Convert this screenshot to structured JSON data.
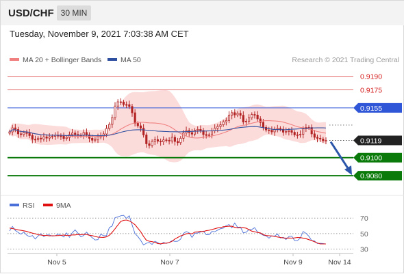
{
  "header": {
    "symbol": "USD/CHF",
    "timeframe": "30 MIN"
  },
  "datetime": "Tuesday, November 9, 2021 7:03:38 AM CET",
  "colors": {
    "ma20": "#f08080",
    "ma50": "#2e4fa0",
    "bollinger_fill": "#fbd5d5",
    "candle": "#b22222",
    "rsi": "#4a6fd8",
    "rsi_ma": "#e01010",
    "resistance": "#d62020",
    "pivot": "#2f56d6",
    "support": "#0a7a0a",
    "last": "#222222",
    "arrow": "#2b55a8"
  },
  "legend": [
    {
      "name": "MA 20 + Bollinger Bands",
      "color": "#f08080"
    },
    {
      "name": "MA 50",
      "color": "#2e4fa0"
    }
  ],
  "watermark": "Research © 2021 Trading Central",
  "rsi_legend": [
    {
      "name": "RSI",
      "color": "#4a6fd8"
    },
    {
      "name": "9MA",
      "color": "#e01010"
    }
  ],
  "chart_data": [
    {
      "type": "candlestick",
      "y_range": [
        9062,
        9198
      ],
      "levels": [
        {
          "label": "0.9190",
          "value": 9190,
          "kind": "resistance"
        },
        {
          "label": "0.9175",
          "value": 9175,
          "kind": "resistance"
        },
        {
          "label": "0.9155",
          "value": 9155,
          "kind": "pivot"
        },
        {
          "label": "0.9119",
          "value": 9119,
          "kind": "last"
        },
        {
          "label": "0.9100",
          "value": 9100,
          "kind": "support"
        },
        {
          "label": "0.9080",
          "value": 9080,
          "kind": "support"
        }
      ],
      "arrow": {
        "from": 9119,
        "to": 9080,
        "direction": "down"
      },
      "x_ticks": [
        "Nov 5",
        "Nov 7",
        "Nov 9",
        "Nov 14"
      ],
      "candles": [
        9128.5,
        9132.9,
        9131.1,
        9126.3,
        9125.6,
        9127.6,
        9127.1,
        9124.4,
        9120.3,
        9119.9,
        9121.5,
        9120.6,
        9123.0,
        9121.6,
        9123.0,
        9123.5,
        9124.6,
        9124.0,
        9123.9,
        9121.2,
        9122.4,
        9125.4,
        9127.2,
        9125.6,
        9124.6,
        9124.5,
        9127.8,
        9125.1,
        9121.4,
        9119.3,
        9120.2,
        9123.1,
        9123.6,
        9126.2,
        9132.2,
        9136.8,
        9144.3,
        9157.0,
        9161.7,
        9161.5,
        9158.7,
        9158.6,
        9156.6,
        9149.6,
        9137.9,
        9135.2,
        9132.6,
        9125.1,
        9115.3,
        9113.5,
        9117.9,
        9119.9,
        9118.2,
        9117.5,
        9119.6,
        9119.1,
        9118.5,
        9122.5,
        9117.9,
        9116.6,
        9121.4,
        9127.2,
        9129.9,
        9127.7,
        9126.0,
        9130.3,
        9131.2,
        9130.0,
        9125.5,
        9124.6,
        9125.3,
        9129.7,
        9132.5,
        9134.4,
        9136.4,
        9139.6,
        9141.1,
        9146.9,
        9149.7,
        9147.3,
        9149.0,
        9146.8,
        9139.4,
        9140.3,
        9144.1,
        9147.7,
        9147.1,
        9142.9,
        9138.9,
        9133.5,
        9130.6,
        9130.2,
        9128.5,
        9131.4,
        9132.3,
        9131.4,
        9128.1,
        9128.9,
        9130.0,
        9128.0,
        9125.2,
        9125.0,
        9125.8,
        9131.8,
        9133.4,
        9133.3,
        9126.3,
        9122.5,
        9121.4,
        9120.6,
        9118.7,
        9119.0
      ]
    },
    {
      "type": "line",
      "name": "RSI",
      "y_range": [
        26,
        79
      ],
      "y_ticks": [
        70,
        50,
        30
      ],
      "x_ticks": [
        "Nov 5",
        "Nov 7",
        "Nov 9",
        "Nov 14"
      ],
      "rsi": [
        53.4,
        59.2,
        54.0,
        51.5,
        49.2,
        52.0,
        48.0,
        46.0,
        47.5,
        43.0,
        46.9,
        49.8,
        46.1,
        48.3,
        48.3,
        46.7,
        47.1,
        49.3,
        48.0,
        45.5,
        50.9,
        45.3,
        51.2,
        54.8,
        50.5,
        46.0,
        47.5,
        51.9,
        47.9,
        44.6,
        41.7,
        42.2,
        49.2,
        47.2,
        47.3,
        57.8,
        59.7,
        70.5,
        71.6,
        73.0,
        73.6,
        69.6,
        73.0,
        61.0,
        50.0,
        46.2,
        41.2,
        35.3,
        37.5,
        38.5,
        36.0,
        40.1,
        38.3,
        36.1,
        38.5,
        37.2,
        38.5,
        40.8,
        39.9,
        40.1,
        42.8,
        50.2,
        52.6,
        51.0,
        45.1,
        50.4,
        50.7,
        52.0,
        53.3,
        48.5,
        48.6,
        52.8,
        52.4,
        54.4,
        56.3,
        57.1,
        60.4,
        61.7,
        57.4,
        63.6,
        58.1,
        58.5,
        51.0,
        51.8,
        55.1,
        55.3,
        57.6,
        52.1,
        50.1,
        47.8,
        47.0,
        44.0,
        47.0,
        46.8,
        49.5,
        44.3,
        45.2,
        42.3,
        46.1,
        46.6,
        41.0,
        40.9,
        44.1,
        52.7,
        50.3,
        46.6,
        40.9,
        40.4,
        37.1,
        37.4,
        37.0,
        36.5
      ],
      "rsi_9ma": [
        57.2,
        56.5,
        55.7,
        54.8,
        54.2,
        53.6,
        52.8,
        51.6,
        50.6,
        49.8,
        48.5,
        48.1,
        47.5,
        47.6,
        47.0,
        47.2,
        47.3,
        47.5,
        47.6,
        48.2,
        47.5,
        47.6,
        48.3,
        48.3,
        48.9,
        48.5,
        48.9,
        48.9,
        47.8,
        47.4,
        46.2,
        45.4,
        45.2,
        45.1,
        45.8,
        47.8,
        51.6,
        56.2,
        61.1,
        65.7,
        67.1,
        67.5,
        66.5,
        64.2,
        61.5,
        56.9,
        52.3,
        46.4,
        41.4,
        40.1,
        39.5,
        38.7,
        37.1,
        36.8,
        37.4,
        37.7,
        38.4,
        40.0,
        43.0,
        45.0,
        46.9,
        48.2,
        49.7,
        50.3,
        49.6,
        51.9,
        52.2,
        52.8,
        52.6,
        53.7,
        54.3,
        55.2,
        56.2,
        57.3,
        57.7,
        58.9,
        59.1,
        59.6,
        59.5,
        58.1,
        57.3,
        57.5,
        57.6,
        57.0,
        55.1,
        53.1,
        52.4,
        51.4,
        50.8,
        48.6,
        47.5,
        47.2,
        46.9,
        46.3,
        45.6,
        45.0,
        44.4,
        44.0,
        44.3,
        44.1,
        44.4,
        45.0,
        44.8,
        44.0,
        43.4,
        42.2,
        40.9,
        39.3,
        37.8,
        36.6,
        36.6,
        36.6
      ],
      "ylim": [
        26,
        79
      ]
    }
  ]
}
